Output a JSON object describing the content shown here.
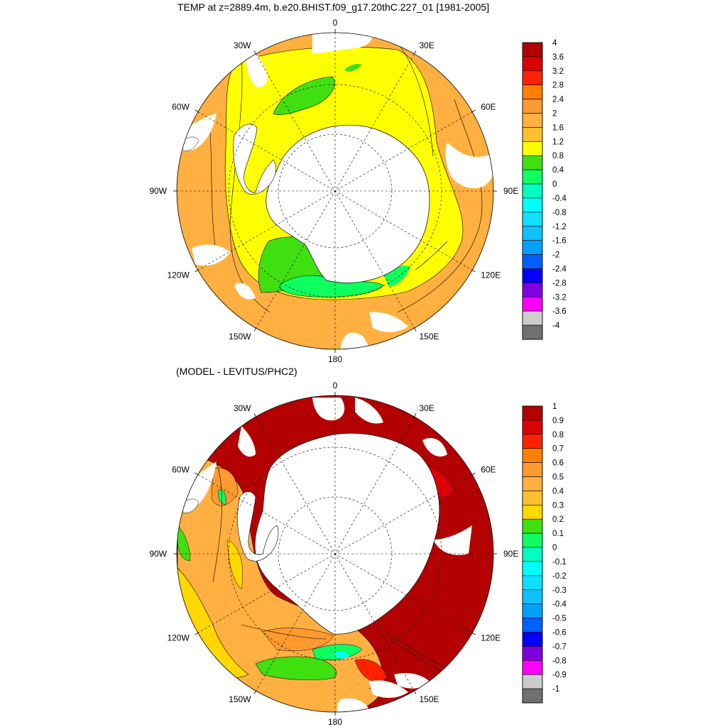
{
  "figure": {
    "title": "TEMP at z=2889.4m, b.e20.BHIST.f09_g17.20thC.227_01 [1981-2005]",
    "subtitle": "(MODEL - LEVITUS/PHC2)"
  },
  "longitude_labels": [
    "0",
    "30E",
    "60E",
    "90E",
    "120E",
    "150E",
    "180",
    "150W",
    "120W",
    "90W",
    "60W",
    "30W"
  ],
  "maps": [
    {
      "name": "model-temperature",
      "colorbar": {
        "labels": [
          "4",
          "3.6",
          "3.2",
          "2.8",
          "2.4",
          "2",
          "1.6",
          "1.2",
          "0.8",
          "0.4",
          "0",
          "-0.4",
          "-0.8",
          "-1.2",
          "-1.6",
          "-2",
          "-2.4",
          "-2.8",
          "-3.2",
          "-3.6",
          "-4"
        ],
        "colors": [
          "#b30000",
          "#dd0000",
          "#ff2200",
          "#ff8000",
          "#ff9a30",
          "#ffb040",
          "#ffc030",
          "#ffff00",
          "#40e010",
          "#10ff60",
          "#00ffc0",
          "#00ffff",
          "#10e0ff",
          "#10c0ff",
          "#00a0ff",
          "#0060ff",
          "#0000ff",
          "#8000e0",
          "#ff00ff",
          "#cccccc",
          "#707070"
        ]
      }
    },
    {
      "name": "model-minus-levitus",
      "colorbar": {
        "labels": [
          "1",
          "0.9",
          "0.8",
          "0.7",
          "0.6",
          "0.5",
          "0.4",
          "0.3",
          "0.2",
          "0.1",
          "0",
          "-0.1",
          "-0.2",
          "-0.3",
          "-0.4",
          "-0.5",
          "-0.6",
          "-0.7",
          "-0.8",
          "-0.9",
          "-1"
        ],
        "colors": [
          "#b30000",
          "#dd0000",
          "#ff2200",
          "#ff8000",
          "#ff9a30",
          "#ffb040",
          "#ffc030",
          "#ffd800",
          "#40e010",
          "#10ff60",
          "#00ffc0",
          "#00ffff",
          "#10e0ff",
          "#10c0ff",
          "#00a0ff",
          "#0060ff",
          "#0000ff",
          "#8000e0",
          "#ff00ff",
          "#cccccc",
          "#707070"
        ]
      }
    }
  ]
}
